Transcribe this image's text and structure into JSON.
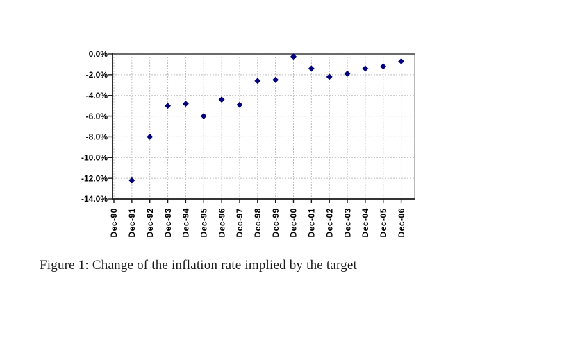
{
  "figure_caption": "Figure 1: Change of the inflation rate implied by the target",
  "chart_data": {
    "type": "scatter",
    "title": "",
    "xlabel": "",
    "ylabel": "",
    "categories": [
      "Dec-90",
      "Dec-91",
      "Dec-92",
      "Dec-93",
      "Dec-94",
      "Dec-95",
      "Dec-96",
      "Dec-97",
      "Dec-98",
      "Dec-99",
      "Dec-00",
      "Dec-01",
      "Dec-02",
      "Dec-03",
      "Dec-04",
      "Dec-05",
      "Dec-06"
    ],
    "values": [
      null,
      -12.2,
      -8.0,
      -5.0,
      -4.8,
      -6.0,
      -4.4,
      -4.9,
      -2.6,
      -2.5,
      -0.25,
      -1.4,
      -2.2,
      -1.9,
      -1.4,
      -1.2,
      -0.7
    ],
    "y_tick_labels": [
      "0.0%",
      "-2.0%",
      "-4.0%",
      "-6.0%",
      "-8.0%",
      "-10.0%",
      "-12.0%",
      "-14.0%"
    ],
    "ylim": [
      -14,
      0
    ],
    "y_major_unit": 2,
    "grid": "dashed-both-axes",
    "legend": "none",
    "marker_shape": "diamond",
    "marker_color": "#000080",
    "gridline_color": "#bcbcbc",
    "value_axis_color": "#1a1a1a",
    "zero_axis_color": "#5a5a5a",
    "plot_border_color": "#8c8c8c",
    "plot_background": "#ffffff"
  }
}
